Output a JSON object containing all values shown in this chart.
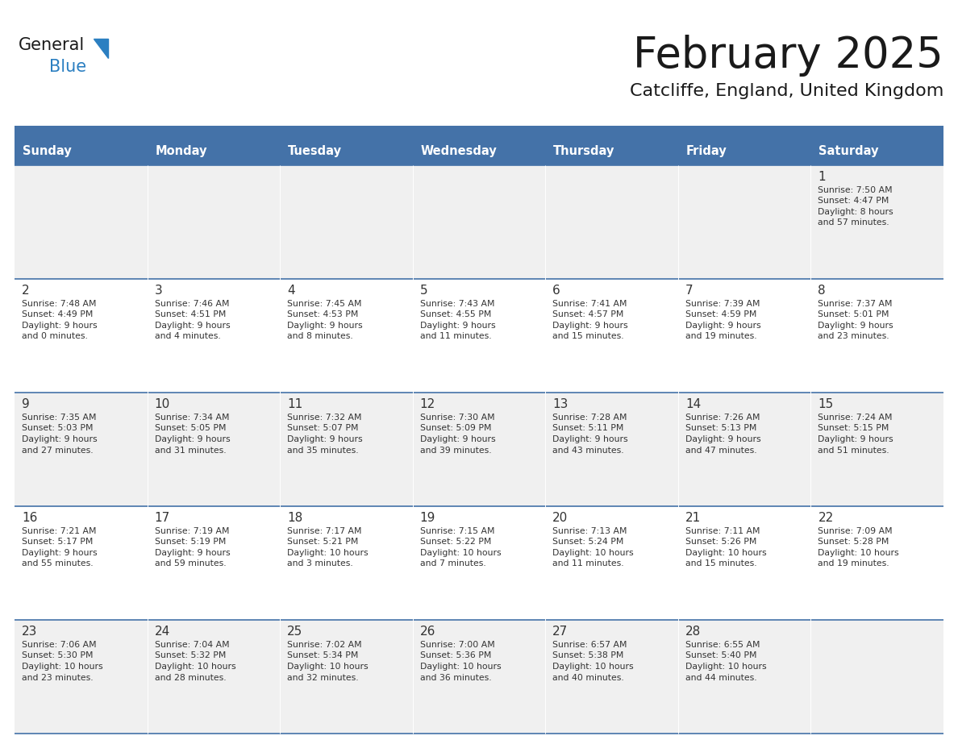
{
  "title": "February 2025",
  "subtitle": "Catcliffe, England, United Kingdom",
  "header_bg": "#4472a8",
  "header_text": "#ffffff",
  "cell_bg_row1": "#f0f0f0",
  "cell_bg_row2": "#ffffff",
  "day_number_color": "#333333",
  "text_color": "#333333",
  "border_color": "#4472a8",
  "days_of_week": [
    "Sunday",
    "Monday",
    "Tuesday",
    "Wednesday",
    "Thursday",
    "Friday",
    "Saturday"
  ],
  "weeks": [
    [
      {
        "day": "",
        "info": ""
      },
      {
        "day": "",
        "info": ""
      },
      {
        "day": "",
        "info": ""
      },
      {
        "day": "",
        "info": ""
      },
      {
        "day": "",
        "info": ""
      },
      {
        "day": "",
        "info": ""
      },
      {
        "day": "1",
        "info": "Sunrise: 7:50 AM\nSunset: 4:47 PM\nDaylight: 8 hours\nand 57 minutes."
      }
    ],
    [
      {
        "day": "2",
        "info": "Sunrise: 7:48 AM\nSunset: 4:49 PM\nDaylight: 9 hours\nand 0 minutes."
      },
      {
        "day": "3",
        "info": "Sunrise: 7:46 AM\nSunset: 4:51 PM\nDaylight: 9 hours\nand 4 minutes."
      },
      {
        "day": "4",
        "info": "Sunrise: 7:45 AM\nSunset: 4:53 PM\nDaylight: 9 hours\nand 8 minutes."
      },
      {
        "day": "5",
        "info": "Sunrise: 7:43 AM\nSunset: 4:55 PM\nDaylight: 9 hours\nand 11 minutes."
      },
      {
        "day": "6",
        "info": "Sunrise: 7:41 AM\nSunset: 4:57 PM\nDaylight: 9 hours\nand 15 minutes."
      },
      {
        "day": "7",
        "info": "Sunrise: 7:39 AM\nSunset: 4:59 PM\nDaylight: 9 hours\nand 19 minutes."
      },
      {
        "day": "8",
        "info": "Sunrise: 7:37 AM\nSunset: 5:01 PM\nDaylight: 9 hours\nand 23 minutes."
      }
    ],
    [
      {
        "day": "9",
        "info": "Sunrise: 7:35 AM\nSunset: 5:03 PM\nDaylight: 9 hours\nand 27 minutes."
      },
      {
        "day": "10",
        "info": "Sunrise: 7:34 AM\nSunset: 5:05 PM\nDaylight: 9 hours\nand 31 minutes."
      },
      {
        "day": "11",
        "info": "Sunrise: 7:32 AM\nSunset: 5:07 PM\nDaylight: 9 hours\nand 35 minutes."
      },
      {
        "day": "12",
        "info": "Sunrise: 7:30 AM\nSunset: 5:09 PM\nDaylight: 9 hours\nand 39 minutes."
      },
      {
        "day": "13",
        "info": "Sunrise: 7:28 AM\nSunset: 5:11 PM\nDaylight: 9 hours\nand 43 minutes."
      },
      {
        "day": "14",
        "info": "Sunrise: 7:26 AM\nSunset: 5:13 PM\nDaylight: 9 hours\nand 47 minutes."
      },
      {
        "day": "15",
        "info": "Sunrise: 7:24 AM\nSunset: 5:15 PM\nDaylight: 9 hours\nand 51 minutes."
      }
    ],
    [
      {
        "day": "16",
        "info": "Sunrise: 7:21 AM\nSunset: 5:17 PM\nDaylight: 9 hours\nand 55 minutes."
      },
      {
        "day": "17",
        "info": "Sunrise: 7:19 AM\nSunset: 5:19 PM\nDaylight: 9 hours\nand 59 minutes."
      },
      {
        "day": "18",
        "info": "Sunrise: 7:17 AM\nSunset: 5:21 PM\nDaylight: 10 hours\nand 3 minutes."
      },
      {
        "day": "19",
        "info": "Sunrise: 7:15 AM\nSunset: 5:22 PM\nDaylight: 10 hours\nand 7 minutes."
      },
      {
        "day": "20",
        "info": "Sunrise: 7:13 AM\nSunset: 5:24 PM\nDaylight: 10 hours\nand 11 minutes."
      },
      {
        "day": "21",
        "info": "Sunrise: 7:11 AM\nSunset: 5:26 PM\nDaylight: 10 hours\nand 15 minutes."
      },
      {
        "day": "22",
        "info": "Sunrise: 7:09 AM\nSunset: 5:28 PM\nDaylight: 10 hours\nand 19 minutes."
      }
    ],
    [
      {
        "day": "23",
        "info": "Sunrise: 7:06 AM\nSunset: 5:30 PM\nDaylight: 10 hours\nand 23 minutes."
      },
      {
        "day": "24",
        "info": "Sunrise: 7:04 AM\nSunset: 5:32 PM\nDaylight: 10 hours\nand 28 minutes."
      },
      {
        "day": "25",
        "info": "Sunrise: 7:02 AM\nSunset: 5:34 PM\nDaylight: 10 hours\nand 32 minutes."
      },
      {
        "day": "26",
        "info": "Sunrise: 7:00 AM\nSunset: 5:36 PM\nDaylight: 10 hours\nand 36 minutes."
      },
      {
        "day": "27",
        "info": "Sunrise: 6:57 AM\nSunset: 5:38 PM\nDaylight: 10 hours\nand 40 minutes."
      },
      {
        "day": "28",
        "info": "Sunrise: 6:55 AM\nSunset: 5:40 PM\nDaylight: 10 hours\nand 44 minutes."
      },
      {
        "day": "",
        "info": ""
      }
    ]
  ],
  "logo_color_general": "#1a1a1a",
  "logo_color_blue": "#2b7fc1",
  "logo_triangle_color": "#2b7fc1",
  "title_color": "#1a1a1a",
  "subtitle_color": "#1a1a1a"
}
